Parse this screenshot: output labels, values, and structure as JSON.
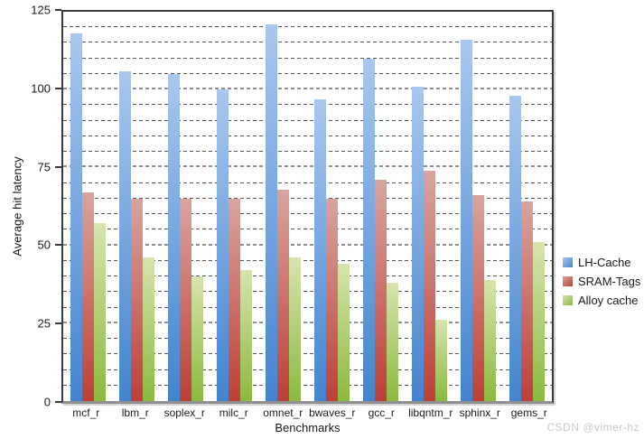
{
  "watermark": "CSDN @vimer-hz",
  "chart_data": {
    "type": "bar",
    "title": "",
    "xlabel": "Benchmarks",
    "ylabel": "Average hit latency",
    "ylim": [
      0,
      125
    ],
    "yticks": [
      0,
      25,
      50,
      75,
      100,
      125
    ],
    "grid_step": 5,
    "grid": true,
    "legend_position": "right",
    "categories": [
      "mcf_r",
      "lbm_r",
      "soplex_r",
      "milc_r",
      "omnet_r",
      "bwaves_r",
      "gcc_r",
      "libqntm_r",
      "sphinx_r",
      "gems_r"
    ],
    "series": [
      {
        "name": "LH-Cache",
        "color": "#5b93d6",
        "gradient_top": "#a9c7ee",
        "gradient_bottom": "#4484ce",
        "values": [
          118,
          106,
          105,
          100,
          121,
          97,
          110,
          101,
          116,
          98
        ]
      },
      {
        "name": "SRAM-Tags",
        "color": "#c0504d",
        "gradient_top": "#d9a49e",
        "gradient_bottom": "#bd4037",
        "values": [
          67,
          65,
          65,
          65,
          68,
          65,
          71,
          74,
          66,
          64
        ]
      },
      {
        "name": "Alloy cache",
        "color": "#9bbb59",
        "gradient_top": "#d7e4ae",
        "gradient_bottom": "#8cb93f",
        "values": [
          57,
          46,
          40,
          42,
          46,
          44,
          38,
          26,
          39,
          51
        ]
      }
    ]
  }
}
